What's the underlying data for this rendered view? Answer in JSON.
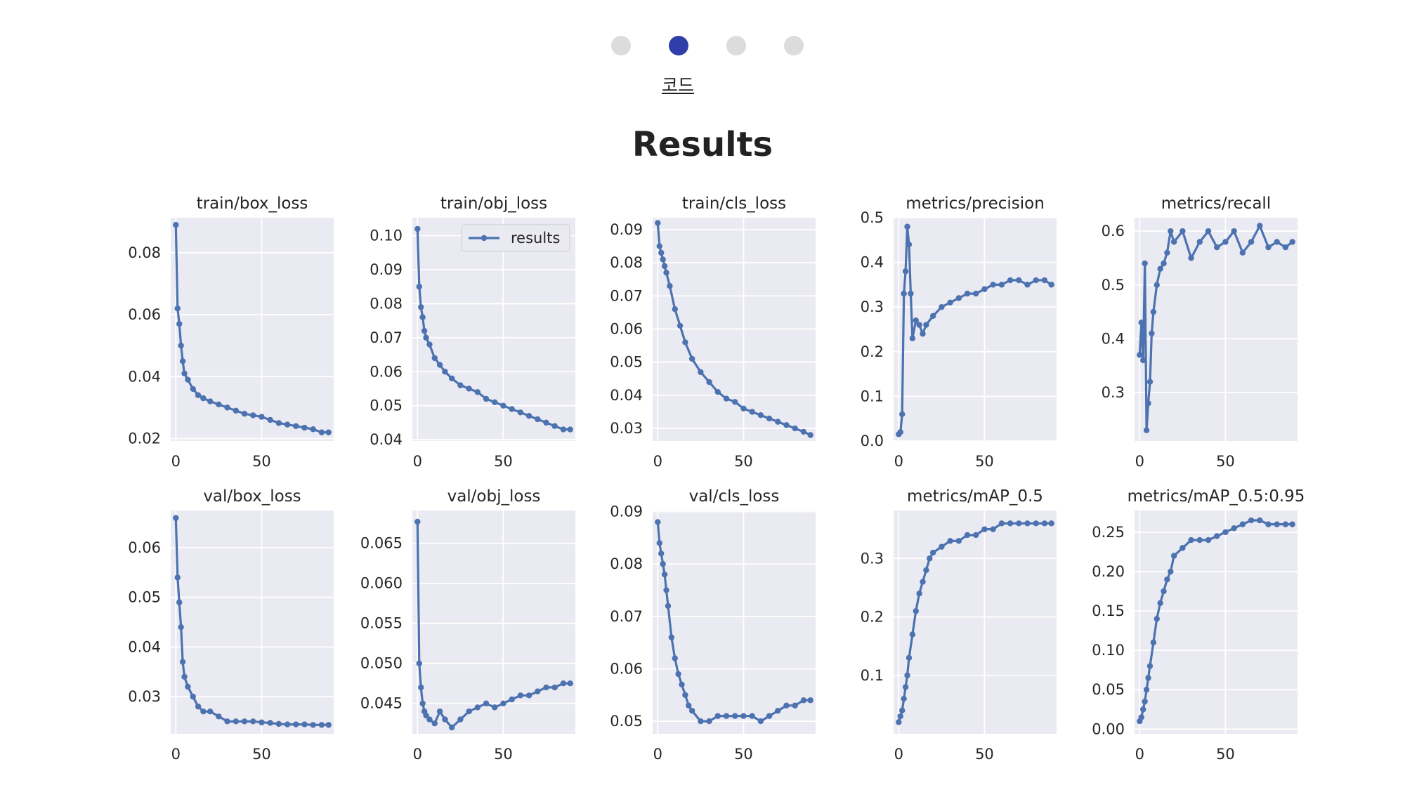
{
  "pager": {
    "steps": [
      "",
      "코드",
      "",
      ""
    ],
    "active_index": 1,
    "active_label": "코드",
    "colors": {
      "active": "#2f3ea8",
      "inactive": "#dcdcdc"
    }
  },
  "page_title": "Results",
  "chart_data": [
    {
      "type": "line",
      "title": "train/box_loss",
      "xticks": [
        0,
        50
      ],
      "yticks": [
        0.02,
        0.04,
        0.06,
        0.08
      ],
      "ytick_labels": [
        "0.02",
        "0.04",
        "0.06",
        "0.08"
      ],
      "xlim": [
        -3,
        92
      ],
      "ylim": [
        0.0192,
        0.0913
      ],
      "series": [
        {
          "x": [
            0,
            1,
            2,
            3,
            4,
            5,
            7,
            10,
            13,
            16,
            20,
            25,
            30,
            35,
            40,
            45,
            50,
            55,
            60,
            65,
            70,
            75,
            80,
            85,
            89
          ],
          "y": [
            0.089,
            0.062,
            0.057,
            0.05,
            0.045,
            0.041,
            0.039,
            0.036,
            0.034,
            0.033,
            0.032,
            0.031,
            0.03,
            0.029,
            0.028,
            0.0275,
            0.027,
            0.026,
            0.025,
            0.0245,
            0.024,
            0.0235,
            0.023,
            0.022,
            0.022
          ]
        }
      ]
    },
    {
      "type": "line",
      "title": "train/obj_loss",
      "xticks": [
        0,
        50
      ],
      "yticks": [
        0.04,
        0.05,
        0.06,
        0.07,
        0.08,
        0.09,
        0.1
      ],
      "ytick_labels": [
        "0.04",
        "0.05",
        "0.06",
        "0.07",
        "0.08",
        "0.09",
        "0.10"
      ],
      "xlim": [
        -3,
        92
      ],
      "ylim": [
        0.0396,
        0.1053
      ],
      "legend": {
        "label": "results",
        "position": "upper right"
      },
      "series": [
        {
          "x": [
            0,
            1,
            2,
            3,
            4,
            5,
            7,
            10,
            13,
            16,
            20,
            25,
            30,
            35,
            40,
            45,
            50,
            55,
            60,
            65,
            70,
            75,
            80,
            85,
            89
          ],
          "y": [
            0.102,
            0.085,
            0.079,
            0.076,
            0.072,
            0.07,
            0.068,
            0.064,
            0.062,
            0.06,
            0.058,
            0.056,
            0.055,
            0.054,
            0.052,
            0.051,
            0.05,
            0.049,
            0.048,
            0.047,
            0.046,
            0.045,
            0.044,
            0.043,
            0.043
          ]
        }
      ]
    },
    {
      "type": "line",
      "title": "train/cls_loss",
      "xticks": [
        0,
        50
      ],
      "yticks": [
        0.03,
        0.04,
        0.05,
        0.06,
        0.07,
        0.08,
        0.09
      ],
      "ytick_labels": [
        "0.03",
        "0.04",
        "0.05",
        "0.06",
        "0.07",
        "0.08",
        "0.09"
      ],
      "xlim": [
        -3,
        92
      ],
      "ylim": [
        0.0262,
        0.0936
      ],
      "series": [
        {
          "x": [
            0,
            1,
            2,
            3,
            4,
            5,
            7,
            10,
            13,
            16,
            20,
            25,
            30,
            35,
            40,
            45,
            50,
            55,
            60,
            65,
            70,
            75,
            80,
            85,
            89
          ],
          "y": [
            0.092,
            0.085,
            0.083,
            0.081,
            0.079,
            0.077,
            0.073,
            0.066,
            0.061,
            0.056,
            0.051,
            0.047,
            0.044,
            0.041,
            0.039,
            0.038,
            0.036,
            0.035,
            0.034,
            0.033,
            0.032,
            0.031,
            0.03,
            0.029,
            0.028
          ]
        }
      ]
    },
    {
      "type": "line",
      "title": "metrics/precision",
      "xticks": [
        0,
        50
      ],
      "yticks": [
        0.0,
        0.1,
        0.2,
        0.3,
        0.4,
        0.5
      ],
      "ytick_labels": [
        "0.0",
        "0.1",
        "0.2",
        "0.3",
        "0.4",
        "0.5"
      ],
      "xlim": [
        -3,
        92
      ],
      "ylim": [
        0.0,
        0.5
      ],
      "series": [
        {
          "x": [
            0,
            1,
            2,
            3,
            4,
            5,
            6,
            7,
            8,
            10,
            12,
            14,
            16,
            20,
            25,
            30,
            35,
            40,
            45,
            50,
            55,
            60,
            65,
            70,
            75,
            80,
            85,
            89
          ],
          "y": [
            0.015,
            0.02,
            0.06,
            0.33,
            0.38,
            0.48,
            0.44,
            0.33,
            0.23,
            0.27,
            0.26,
            0.24,
            0.26,
            0.28,
            0.3,
            0.31,
            0.32,
            0.33,
            0.33,
            0.34,
            0.35,
            0.35,
            0.36,
            0.36,
            0.35,
            0.36,
            0.36,
            0.35
          ]
        }
      ]
    },
    {
      "type": "line",
      "title": "metrics/recall",
      "xticks": [
        0,
        50
      ],
      "yticks": [
        0.3,
        0.4,
        0.5,
        0.6
      ],
      "ytick_labels": [
        "0.3",
        "0.4",
        "0.5",
        "0.6"
      ],
      "xlim": [
        -3,
        92
      ],
      "ylim": [
        0.21,
        0.625
      ],
      "series": [
        {
          "x": [
            0,
            1,
            2,
            3,
            4,
            5,
            6,
            7,
            8,
            10,
            12,
            14,
            16,
            18,
            20,
            25,
            30,
            35,
            40,
            45,
            50,
            55,
            60,
            65,
            70,
            75,
            80,
            85,
            89
          ],
          "y": [
            0.37,
            0.43,
            0.36,
            0.54,
            0.23,
            0.28,
            0.32,
            0.41,
            0.45,
            0.5,
            0.53,
            0.54,
            0.56,
            0.6,
            0.58,
            0.6,
            0.55,
            0.58,
            0.6,
            0.57,
            0.58,
            0.6,
            0.56,
            0.58,
            0.61,
            0.57,
            0.58,
            0.57,
            0.58
          ]
        }
      ]
    },
    {
      "type": "line",
      "title": "val/box_loss",
      "xticks": [
        0,
        50
      ],
      "yticks": [
        0.03,
        0.04,
        0.05,
        0.06
      ],
      "ytick_labels": [
        "0.03",
        "0.04",
        "0.05",
        "0.06"
      ],
      "xlim": [
        -3,
        92
      ],
      "ylim": [
        0.0225,
        0.0675
      ],
      "series": [
        {
          "x": [
            0,
            1,
            2,
            3,
            4,
            5,
            7,
            10,
            13,
            16,
            20,
            25,
            30,
            35,
            40,
            45,
            50,
            55,
            60,
            65,
            70,
            75,
            80,
            85,
            89
          ],
          "y": [
            0.066,
            0.054,
            0.049,
            0.044,
            0.037,
            0.034,
            0.032,
            0.03,
            0.028,
            0.027,
            0.027,
            0.026,
            0.025,
            0.025,
            0.025,
            0.025,
            0.0248,
            0.0247,
            0.0245,
            0.0244,
            0.0244,
            0.0244,
            0.0243,
            0.0243,
            0.0243
          ]
        }
      ]
    },
    {
      "type": "line",
      "title": "val/obj_loss",
      "xticks": [
        0,
        50
      ],
      "yticks": [
        0.045,
        0.05,
        0.055,
        0.06,
        0.065
      ],
      "ytick_labels": [
        "0.045",
        "0.050",
        "0.055",
        "0.060",
        "0.065"
      ],
      "xlim": [
        -3,
        92
      ],
      "ylim": [
        0.0412,
        0.0691
      ],
      "series": [
        {
          "x": [
            0,
            1,
            2,
            3,
            4,
            5,
            7,
            10,
            13,
            16,
            20,
            25,
            30,
            35,
            40,
            45,
            50,
            55,
            60,
            65,
            70,
            75,
            80,
            85,
            89
          ],
          "y": [
            0.0677,
            0.05,
            0.047,
            0.045,
            0.044,
            0.0435,
            0.043,
            0.0425,
            0.044,
            0.043,
            0.042,
            0.043,
            0.044,
            0.0445,
            0.045,
            0.0445,
            0.045,
            0.0455,
            0.046,
            0.046,
            0.0465,
            0.047,
            0.047,
            0.0475,
            0.0475
          ]
        }
      ]
    },
    {
      "type": "line",
      "title": "val/cls_loss",
      "xticks": [
        0,
        50
      ],
      "yticks": [
        0.05,
        0.06,
        0.07,
        0.08,
        0.09
      ],
      "ytick_labels": [
        "0.05",
        "0.06",
        "0.07",
        "0.08",
        "0.09"
      ],
      "xlim": [
        -3,
        92
      ],
      "ylim": [
        0.0476,
        0.0902
      ],
      "series": [
        {
          "x": [
            0,
            1,
            2,
            3,
            4,
            5,
            6,
            8,
            10,
            12,
            14,
            16,
            18,
            20,
            25,
            30,
            35,
            40,
            45,
            50,
            55,
            60,
            65,
            70,
            75,
            80,
            85,
            89
          ],
          "y": [
            0.088,
            0.084,
            0.082,
            0.08,
            0.078,
            0.075,
            0.072,
            0.066,
            0.062,
            0.059,
            0.057,
            0.055,
            0.053,
            0.052,
            0.05,
            0.05,
            0.051,
            0.051,
            0.051,
            0.051,
            0.051,
            0.05,
            0.051,
            0.052,
            0.053,
            0.053,
            0.054,
            0.054
          ]
        }
      ]
    },
    {
      "type": "line",
      "title": "metrics/mAP_0.5",
      "xticks": [
        0,
        50
      ],
      "yticks": [
        0.1,
        0.2,
        0.3
      ],
      "ytick_labels": [
        "0.1",
        "0.2",
        "0.3"
      ],
      "xlim": [
        -3,
        92
      ],
      "ylim": [
        0.0,
        0.382
      ],
      "series": [
        {
          "x": [
            0,
            1,
            2,
            3,
            4,
            5,
            6,
            8,
            10,
            12,
            14,
            16,
            18,
            20,
            25,
            30,
            35,
            40,
            45,
            50,
            55,
            60,
            65,
            70,
            75,
            80,
            85,
            89
          ],
          "y": [
            0.02,
            0.03,
            0.04,
            0.06,
            0.08,
            0.1,
            0.13,
            0.17,
            0.21,
            0.24,
            0.26,
            0.28,
            0.3,
            0.31,
            0.32,
            0.33,
            0.33,
            0.34,
            0.34,
            0.35,
            0.35,
            0.36,
            0.36,
            0.36,
            0.36,
            0.36,
            0.36,
            0.36
          ]
        }
      ]
    },
    {
      "type": "line",
      "title": "metrics/mAP_0.5:0.95",
      "xticks": [
        0,
        50
      ],
      "yticks": [
        0.0,
        0.05,
        0.1,
        0.15,
        0.2,
        0.25
      ],
      "ytick_labels": [
        "0.00",
        "0.05",
        "0.10",
        "0.15",
        "0.20",
        "0.25"
      ],
      "xlim": [
        -3,
        92
      ],
      "ylim": [
        -0.006,
        0.2775
      ],
      "series": [
        {
          "x": [
            0,
            1,
            2,
            3,
            4,
            5,
            6,
            8,
            10,
            12,
            14,
            16,
            18,
            20,
            25,
            30,
            35,
            40,
            45,
            50,
            55,
            60,
            65,
            70,
            75,
            80,
            85,
            89
          ],
          "y": [
            0.01,
            0.015,
            0.025,
            0.035,
            0.05,
            0.065,
            0.08,
            0.11,
            0.14,
            0.16,
            0.175,
            0.19,
            0.2,
            0.22,
            0.23,
            0.24,
            0.24,
            0.24,
            0.245,
            0.25,
            0.255,
            0.26,
            0.265,
            0.265,
            0.26,
            0.26,
            0.26,
            0.26
          ]
        }
      ]
    }
  ]
}
